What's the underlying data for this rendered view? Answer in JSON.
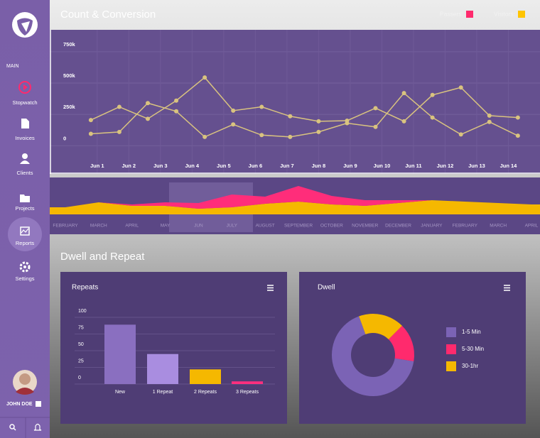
{
  "sidebar": {
    "section": "MAIN",
    "nav": [
      "Stopwatch",
      "Invoices",
      "Clients",
      "Projects",
      "Reports",
      "Settings"
    ],
    "active": 4,
    "user": "JOHN DOE"
  },
  "header": {
    "title": "Count & Conversion"
  },
  "section_title": "Dwell and Repeat",
  "chart_data": [
    {
      "type": "line",
      "grid": true,
      "markers": true,
      "x": [
        0.8,
        1.7,
        2.6,
        3.5,
        4.4,
        5.3,
        6.2,
        7.1,
        8.0,
        8.9,
        9.8,
        10.7,
        11.6,
        12.5,
        13.4,
        14.3
      ],
      "xlim": [
        -0.5,
        15
      ],
      "xticks": [
        {
          "value": 1,
          "label": "Jun 1"
        },
        {
          "value": 2,
          "label": "Jun 2"
        },
        {
          "value": 3,
          "label": "Jun 3"
        },
        {
          "value": 4,
          "label": "Jun 4"
        },
        {
          "value": 5,
          "label": "Jun 5"
        },
        {
          "value": 6,
          "label": "Jun 6"
        },
        {
          "value": 7,
          "label": "Jun 7"
        },
        {
          "value": 8,
          "label": "Jun 8"
        },
        {
          "value": 9,
          "label": "Jun 9"
        },
        {
          "value": 10,
          "label": "Jun 10"
        },
        {
          "value": 11,
          "label": "Jun 11"
        },
        {
          "value": 12,
          "label": "Jun 12"
        },
        {
          "value": 13,
          "label": "Jun 13"
        },
        {
          "value": 14,
          "label": "Jun 14"
        }
      ],
      "ylim": [
        -225000,
        925000
      ],
      "yticks": [
        0,
        {
          "value": 250000,
          "label": "250k"
        },
        {
          "value": 500000,
          "label": "500k"
        },
        {
          "value": 750000,
          "label": "750k"
        }
      ],
      "series": [
        {
          "name": "Passers:",
          "legend_color": "#ff2a6d",
          "color": "#d9c37f",
          "values": [
            205000,
            310000,
            215000,
            360000,
            545000,
            280000,
            310000,
            235000,
            195000,
            200000,
            300000,
            195000,
            405000,
            465000,
            240000,
            225000
          ]
        },
        {
          "name": "Visitors:",
          "legend_color": "#ffc400",
          "color": "#d9c37f",
          "values": [
            95000,
            110000,
            340000,
            275000,
            70000,
            170000,
            85000,
            70000,
            110000,
            180000,
            150000,
            420000,
            225000,
            90000,
            190000,
            80000
          ]
        }
      ]
    },
    {
      "type": "area",
      "stacked": true,
      "categories": [
        "FEBRUARY",
        "MARCH",
        "APRIL",
        "MAY",
        "JUN",
        "JULY",
        "AUGUST",
        "SEPTEMBER",
        "OCTOBER",
        "NOVEMBER",
        "DECEMBER",
        "JANUARY",
        "FEBRUARY",
        "MARCH",
        "APRIL"
      ],
      "ylim": [
        0,
        50
      ],
      "series": [
        {
          "color": "#f5b800",
          "values": [
            10,
            17,
            12,
            12,
            8,
            10,
            15,
            18,
            14,
            12,
            16,
            20,
            18,
            16,
            14
          ]
        },
        {
          "color": "#ff2d7a",
          "values": [
            0,
            0,
            2,
            5,
            8,
            18,
            10,
            22,
            12,
            8,
            4,
            0,
            0,
            0,
            0
          ]
        }
      ]
    },
    {
      "type": "bar",
      "title": "Repeats",
      "grid": true,
      "categories": [
        "New",
        "1 Repeat",
        "2 Repeats",
        "3 Repeats"
      ],
      "values": [
        89,
        45,
        22,
        4
      ],
      "colors": [
        "#8a6fc0",
        "#a98de0",
        "#f5b800",
        "#ff2e7e"
      ],
      "ylim": [
        0,
        100
      ],
      "yticks": [
        0,
        25,
        50,
        75,
        100
      ]
    },
    {
      "type": "pie",
      "title": "Dwell",
      "donut": true,
      "start_angle": 340,
      "direction": "counterclockwise",
      "labels": [
        "1-5 Min",
        "5-30 Min",
        "30-1hr"
      ],
      "values": [
        67,
        15,
        18
      ],
      "colors": [
        "#7b63b5",
        "#ff2a6d",
        "#f5b800"
      ]
    }
  ]
}
